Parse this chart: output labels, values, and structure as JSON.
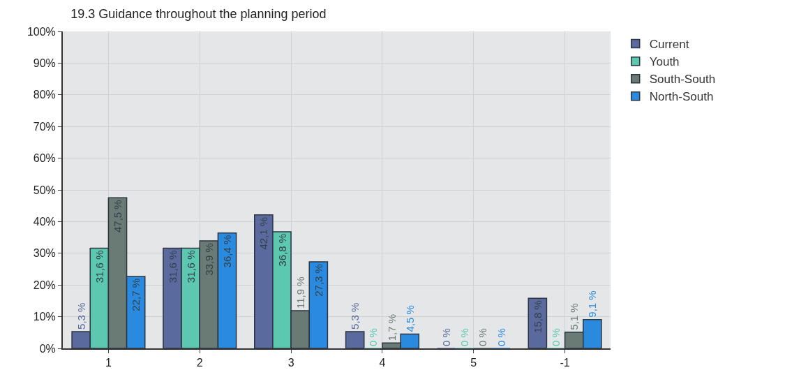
{
  "chart_data": {
    "type": "bar",
    "title": "19.3 Guidance throughout the planning period",
    "categories": [
      "1",
      "2",
      "3",
      "4",
      "5",
      "-1"
    ],
    "series": [
      {
        "name": "Current",
        "color": "#5a6a9e",
        "values": [
          5.3,
          31.6,
          42.1,
          5.3,
          0,
          15.8
        ],
        "value_labels": [
          "5,3 %",
          "31,6 %",
          "42,1 %",
          "5,3 %",
          "0 %",
          "15,8 %"
        ]
      },
      {
        "name": "Youth",
        "color": "#5cc8b0",
        "values": [
          31.6,
          31.6,
          36.8,
          0,
          0,
          0
        ],
        "value_labels": [
          "31,6 %",
          "31,6 %",
          "36,8 %",
          "0 %",
          "0 %",
          "0 %"
        ]
      },
      {
        "name": "South-South",
        "color": "#6a7a74",
        "values": [
          47.5,
          33.9,
          11.9,
          1.7,
          0,
          5.1
        ],
        "value_labels": [
          "47,5 %",
          "33,9 %",
          "11,9 %",
          "1,7 %",
          "0 %",
          "5,1 %"
        ]
      },
      {
        "name": "North-South",
        "color": "#2a8ae0",
        "values": [
          22.7,
          36.4,
          27.3,
          4.5,
          0,
          9.1
        ],
        "value_labels": [
          "22,7 %",
          "36,4 %",
          "27,3 %",
          "4,5 %",
          "0 %",
          "9,1 %"
        ]
      }
    ],
    "ylim": [
      0,
      100
    ],
    "yticks": [
      {
        "value": 0,
        "label": "0%"
      },
      {
        "value": 10,
        "label": "10%"
      },
      {
        "value": 20,
        "label": "20%"
      },
      {
        "value": 30,
        "label": "30%"
      },
      {
        "value": 40,
        "label": "40%"
      },
      {
        "value": 50,
        "label": "50%"
      },
      {
        "value": 60,
        "label": "60%"
      },
      {
        "value": 70,
        "label": "70%"
      },
      {
        "value": 80,
        "label": "80%"
      },
      {
        "value": 90,
        "label": "90%"
      },
      {
        "value": 100,
        "label": "100%"
      }
    ],
    "grid": true,
    "legend": "top right"
  }
}
